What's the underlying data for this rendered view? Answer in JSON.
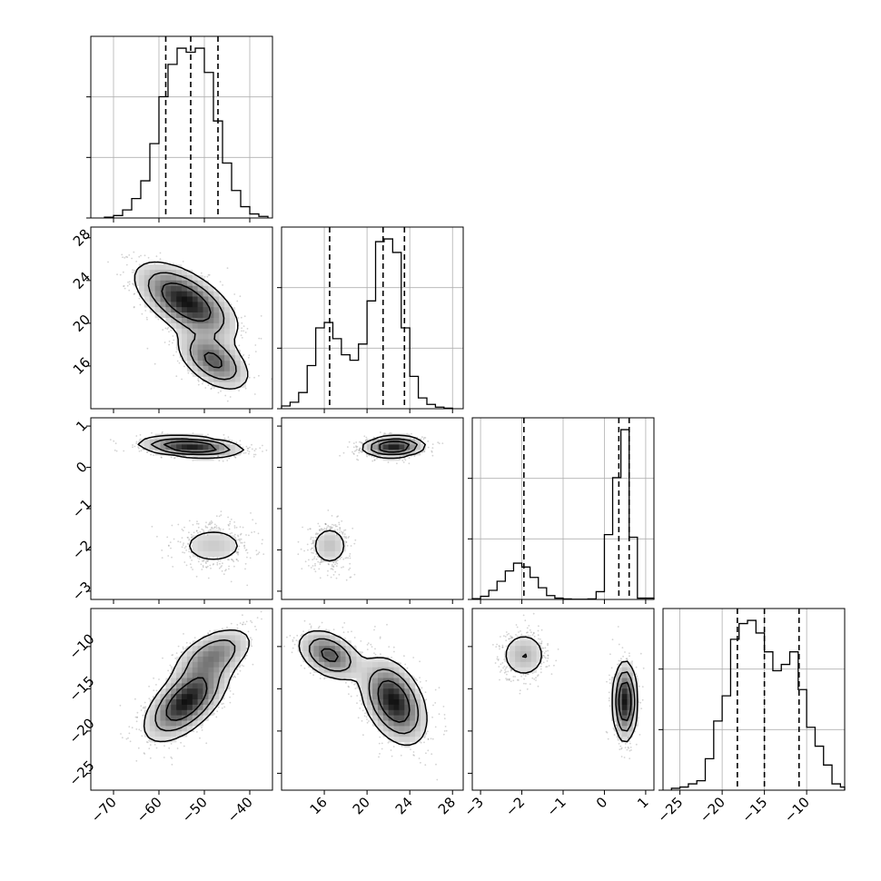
{
  "chart_data": {
    "type": "corner",
    "title": "",
    "grid": true,
    "parameters": [
      {
        "range": [
          -75,
          -35
        ],
        "ticks": [
          -70,
          -60,
          -50,
          -40
        ],
        "tick_labels": [
          "−70",
          "−60",
          "−50",
          "−40"
        ],
        "quantiles": [
          -58.5,
          -53,
          -47
        ]
      },
      {
        "range": [
          12,
          29
        ],
        "ticks": [
          16,
          20,
          24,
          28
        ],
        "tick_labels": [
          "16",
          "20",
          "24",
          "28"
        ],
        "quantiles": [
          16.5,
          21.5,
          23.5
        ]
      },
      {
        "range": [
          -3.2,
          1.2
        ],
        "ticks": [
          -3,
          -2,
          -1,
          0,
          1
        ],
        "tick_labels": [
          "−3",
          "−2",
          "−1",
          "0",
          "1"
        ],
        "quantiles": [
          -1.95,
          0.35,
          0.6
        ]
      },
      {
        "range": [
          -27,
          -5.5
        ],
        "ticks": [
          -25,
          -20,
          -15,
          -10
        ],
        "tick_labels": [
          "−25",
          "−20",
          "−15",
          "−10"
        ],
        "quantiles": [
          -18.2,
          -15,
          -10.9
        ]
      }
    ],
    "histograms": [
      {
        "param": 0,
        "bin_edges": [
          -72,
          -70,
          -68,
          -66,
          -64,
          -62,
          -60,
          -58,
          -56,
          -54,
          -52,
          -50,
          -48,
          -46,
          -44,
          -42,
          -40,
          -38,
          -36
        ],
        "counts": [
          1,
          3,
          10,
          24,
          46,
          92,
          150,
          190,
          210,
          205,
          210,
          180,
          120,
          68,
          34,
          14,
          5,
          2
        ]
      },
      {
        "param": 1,
        "bin_edges": [
          12,
          12.8,
          13.6,
          14.4,
          15.2,
          16,
          16.8,
          17.6,
          18.4,
          19.2,
          20,
          20.8,
          21.6,
          22.4,
          23.2,
          24,
          24.8,
          25.6,
          26.4,
          27.2,
          28
        ],
        "counts": [
          5,
          12,
          30,
          80,
          150,
          160,
          130,
          100,
          90,
          120,
          200,
          310,
          315,
          290,
          150,
          60,
          20,
          8,
          3,
          1
        ]
      },
      {
        "param": 2,
        "bin_edges": [
          -3.2,
          -3.0,
          -2.8,
          -2.6,
          -2.4,
          -2.2,
          -2.0,
          -1.8,
          -1.6,
          -1.4,
          -1.2,
          -1.0,
          -0.8,
          -0.6,
          -0.4,
          -0.2,
          0,
          0.2,
          0.4,
          0.6,
          0.8,
          1.0,
          1.2
        ],
        "counts": [
          3,
          12,
          35,
          70,
          110,
          140,
          125,
          85,
          45,
          15,
          5,
          2,
          1,
          1,
          2,
          30,
          250,
          470,
          655,
          240,
          5,
          5
        ]
      },
      {
        "param": 3,
        "bin_edges": [
          -26,
          -25,
          -24,
          -23,
          -22,
          -21,
          -20,
          -19,
          -18,
          -17,
          -16,
          -15,
          -14,
          -13,
          -12,
          -11,
          -10,
          -9,
          -8,
          -7,
          -6,
          -5.5
        ],
        "counts": [
          3,
          5,
          10,
          15,
          50,
          110,
          150,
          240,
          265,
          270,
          250,
          220,
          190,
          200,
          220,
          160,
          100,
          70,
          40,
          10,
          5
        ]
      }
    ],
    "pairs": [
      {
        "row": 1,
        "col": 0,
        "modes": [
          {
            "mean": [
              -54,
              22
            ],
            "sd": [
              5.5,
              1.8
            ],
            "rho": -0.6,
            "weight": 0.7
          },
          {
            "mean": [
              -48,
              16.5
            ],
            "sd": [
              4.0,
              1.4
            ],
            "rho": -0.5,
            "weight": 0.3
          }
        ]
      },
      {
        "row": 2,
        "col": 0,
        "modes": [
          {
            "mean": [
              -53,
              0.5
            ],
            "sd": [
              5.5,
              0.12
            ],
            "rho": -0.3,
            "weight": 0.7
          },
          {
            "mean": [
              -48,
              -1.9
            ],
            "sd": [
              4.5,
              0.28
            ],
            "rho": 0,
            "weight": 0.3
          }
        ]
      },
      {
        "row": 2,
        "col": 1,
        "modes": [
          {
            "mean": [
              22.5,
              0.5
            ],
            "sd": [
              1.4,
              0.12
            ],
            "rho": 0.1,
            "weight": 0.7
          },
          {
            "mean": [
              16.5,
              -1.9
            ],
            "sd": [
              1.0,
              0.28
            ],
            "rho": 0,
            "weight": 0.3
          }
        ]
      },
      {
        "row": 3,
        "col": 0,
        "modes": [
          {
            "mean": [
              -54,
              -16.5
            ],
            "sd": [
              4.5,
              2.3
            ],
            "rho": 0.6,
            "weight": 0.7
          },
          {
            "mean": [
              -48,
              -11
            ],
            "sd": [
              4.5,
              1.7
            ],
            "rho": 0.5,
            "weight": 0.3
          }
        ]
      },
      {
        "row": 3,
        "col": 1,
        "modes": [
          {
            "mean": [
              22.5,
              -16.5
            ],
            "sd": [
              1.5,
              2.5
            ],
            "rho": -0.4,
            "weight": 0.7
          },
          {
            "mean": [
              16.5,
              -11
            ],
            "sd": [
              1.5,
              1.5
            ],
            "rho": -0.4,
            "weight": 0.3
          }
        ]
      },
      {
        "row": 3,
        "col": 2,
        "modes": [
          {
            "mean": [
              0.5,
              -16.5
            ],
            "sd": [
              0.14,
              2.3
            ],
            "rho": 0,
            "weight": 0.7
          },
          {
            "mean": [
              -1.95,
              -11
            ],
            "sd": [
              0.3,
              1.5
            ],
            "rho": 0,
            "weight": 0.3
          }
        ]
      }
    ]
  }
}
